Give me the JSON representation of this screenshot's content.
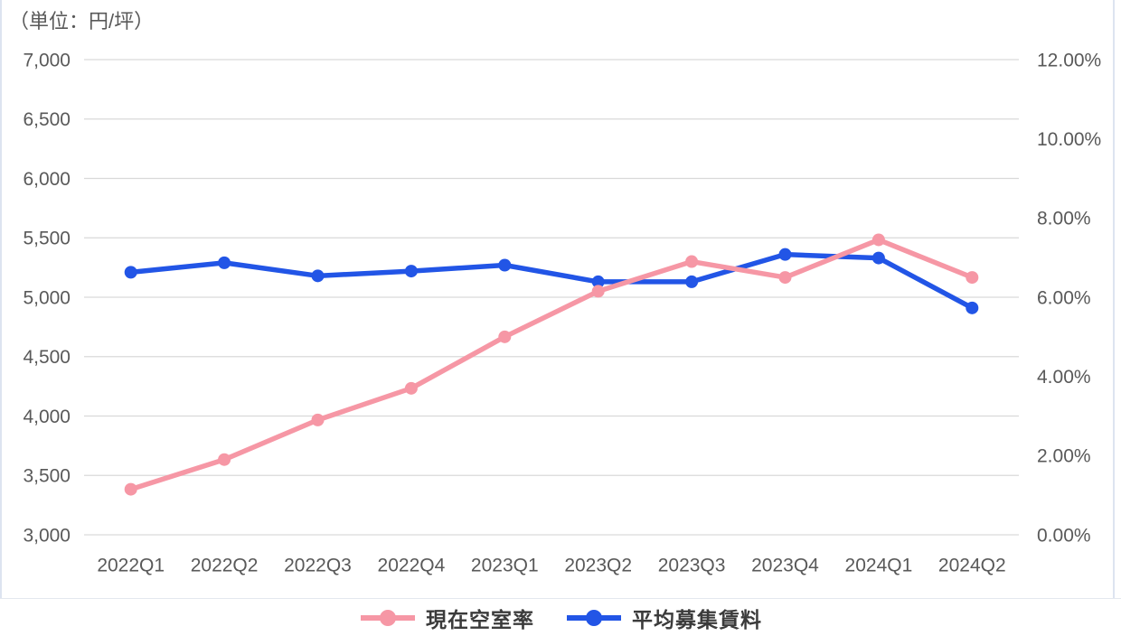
{
  "page": {
    "unit_label": "（単位：円/坪）"
  },
  "colors": {
    "vacancy_pink": "#F697A5",
    "rent_blue": "#2255E6",
    "gridline": "#D9D9D9",
    "axis_text": "#595959",
    "legend_text": "#3B3B3B"
  },
  "chart_data": {
    "type": "line",
    "title": "（単位：円/坪）",
    "categories": [
      "2022Q1",
      "2022Q2",
      "2022Q3",
      "2022Q4",
      "2023Q1",
      "2023Q2",
      "2023Q3",
      "2023Q4",
      "2024Q1",
      "2024Q2"
    ],
    "series": [
      {
        "name": "現在空室率",
        "axis": "right",
        "color": "#F697A5",
        "values": [
          1.15,
          1.9,
          2.9,
          3.7,
          5.0,
          6.15,
          6.9,
          6.5,
          7.45,
          6.5
        ]
      },
      {
        "name": "平均募集賃料",
        "axis": "left",
        "color": "#2255E6",
        "values": [
          5210,
          5290,
          5180,
          5220,
          5270,
          5130,
          5130,
          5360,
          5330,
          4910
        ]
      }
    ],
    "left_axis": {
      "min": 3000,
      "max": 7000,
      "step": 500,
      "ticks": [
        "7,000",
        "6,500",
        "6,000",
        "5,500",
        "5,000",
        "4,500",
        "4,000",
        "3,500",
        "3,000"
      ]
    },
    "right_axis": {
      "min": 0,
      "max": 12,
      "step": 2,
      "ticks": [
        "12.00%",
        "10.00%",
        "8.00%",
        "6.00%",
        "4.00%",
        "2.00%",
        "0.00%"
      ]
    },
    "grid": true,
    "legend_position": "bottom"
  },
  "legend": {
    "items": [
      {
        "label": "現在空室率",
        "color": "#F697A5"
      },
      {
        "label": "平均募集賃料",
        "color": "#2255E6"
      }
    ]
  }
}
